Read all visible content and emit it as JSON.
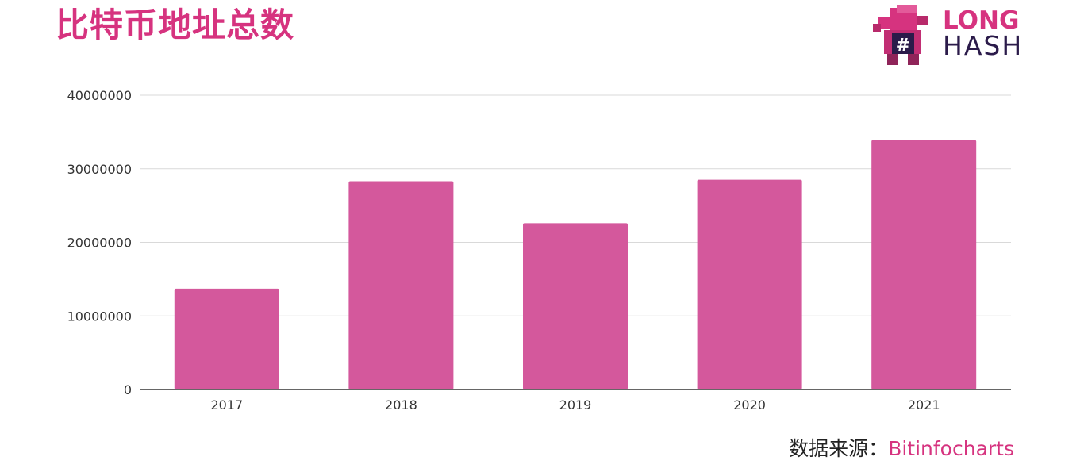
{
  "header": {
    "title": "比特币地址总数"
  },
  "logo": {
    "line1": "LONG",
    "line2": "HASH",
    "brand_color": "#d6337f"
  },
  "source": {
    "label": "数据来源：",
    "value": "Bitinfocharts"
  },
  "chart_data": {
    "type": "bar",
    "title": "比特币地址总数",
    "categories": [
      "2017",
      "2018",
      "2019",
      "2020",
      "2021"
    ],
    "values": [
      13700000,
      28300000,
      22600000,
      28500000,
      33900000
    ],
    "ylim": [
      0,
      40000000
    ],
    "yticks": [
      "0",
      "10000000",
      "20000000",
      "30000000",
      "40000000"
    ],
    "grid": true,
    "bar_color": "#d4589c",
    "xlabel": "",
    "ylabel": ""
  }
}
